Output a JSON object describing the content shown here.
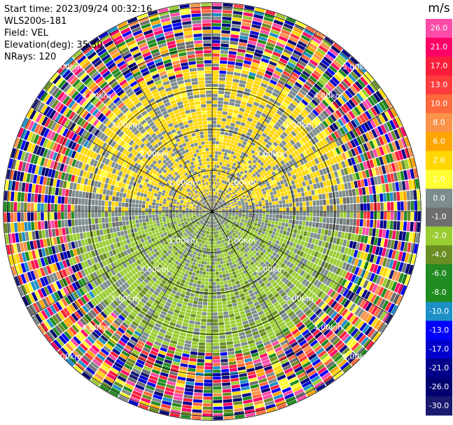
{
  "header": {
    "lines": [
      "Start time: 2023/09/24 00:32:16",
      "WLS200s-181",
      "Field: VEL",
      "Elevation(deg): 35.30",
      "NRays: 120"
    ]
  },
  "chart_data": {
    "type": "heatmap",
    "projection": "polar-ppi",
    "field": "VEL",
    "nrays": 120,
    "range_rings": [
      {
        "label": "1.00km",
        "value_km": 1.0
      },
      {
        "label": "2.00km",
        "value_km": 2.0
      },
      {
        "label": "3.00km",
        "value_km": 3.0
      },
      {
        "label": "4.00km",
        "value_km": 4.0
      },
      {
        "label": "5.00km",
        "value_km": 5.0
      }
    ],
    "max_range_km": 5.1,
    "colorbar": {
      "unit": "m/s",
      "ticks": [
        "26.0",
        "21.0",
        "17.0",
        "13.0",
        "10.0",
        "8.0",
        "6.0",
        "2.0",
        "1.0",
        "0.0",
        "-1.0",
        "-2.0",
        "-4.0",
        "-6.0",
        "-8.0",
        "-10.0",
        "-13.0",
        "-17.0",
        "-21.0",
        "-26.0",
        "-30.0"
      ],
      "colors": [
        "#fe4ba8",
        "#ff0066",
        "#fa1e3c",
        "#ff3c3c",
        "#ff6a3c",
        "#fb934a",
        "#ffa500",
        "#ffd700",
        "#ffff33",
        "#7d8c8c",
        "#6e6e6e",
        "#9acd32",
        "#6b8e23",
        "#228b22",
        "#1e8c1e",
        "#1e90c8",
        "#0000ff",
        "#0000cd",
        "#00008b",
        "#000070",
        "#191970"
      ]
    },
    "notes": "Inner ~3.5 km shows coherent winds: positive (yellow) toward the north, negative (green) toward the south, grey near zero. Beyond ~3.5 km the field is noise across the full colour scale."
  }
}
